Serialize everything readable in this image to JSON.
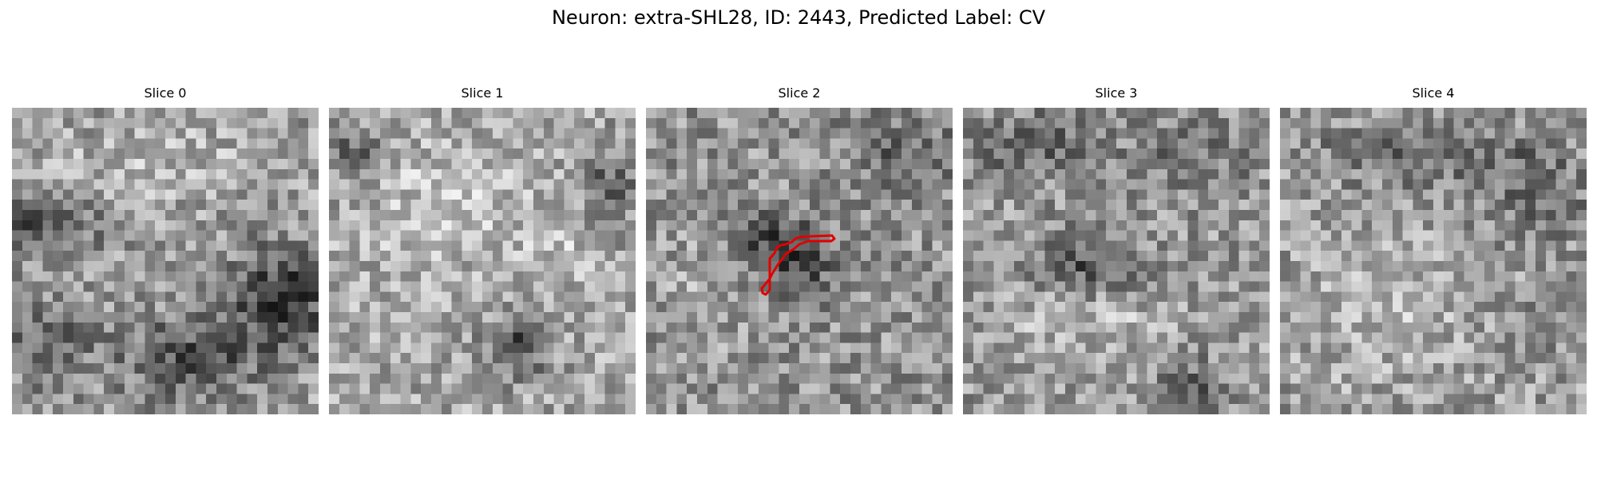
{
  "title": "Neuron: extra-SHL28, ID: 2443, Predicted Label: CV",
  "grid_resolution": 30,
  "colormap": "gray",
  "outline_color": "#e00000",
  "slices": [
    {
      "label": "Slice 0",
      "has_outline": false
    },
    {
      "label": "Slice 1",
      "has_outline": false
    },
    {
      "label": "Slice 2",
      "has_outline": true
    },
    {
      "label": "Slice 3",
      "has_outline": false
    },
    {
      "label": "Slice 4",
      "has_outline": false
    }
  ]
}
